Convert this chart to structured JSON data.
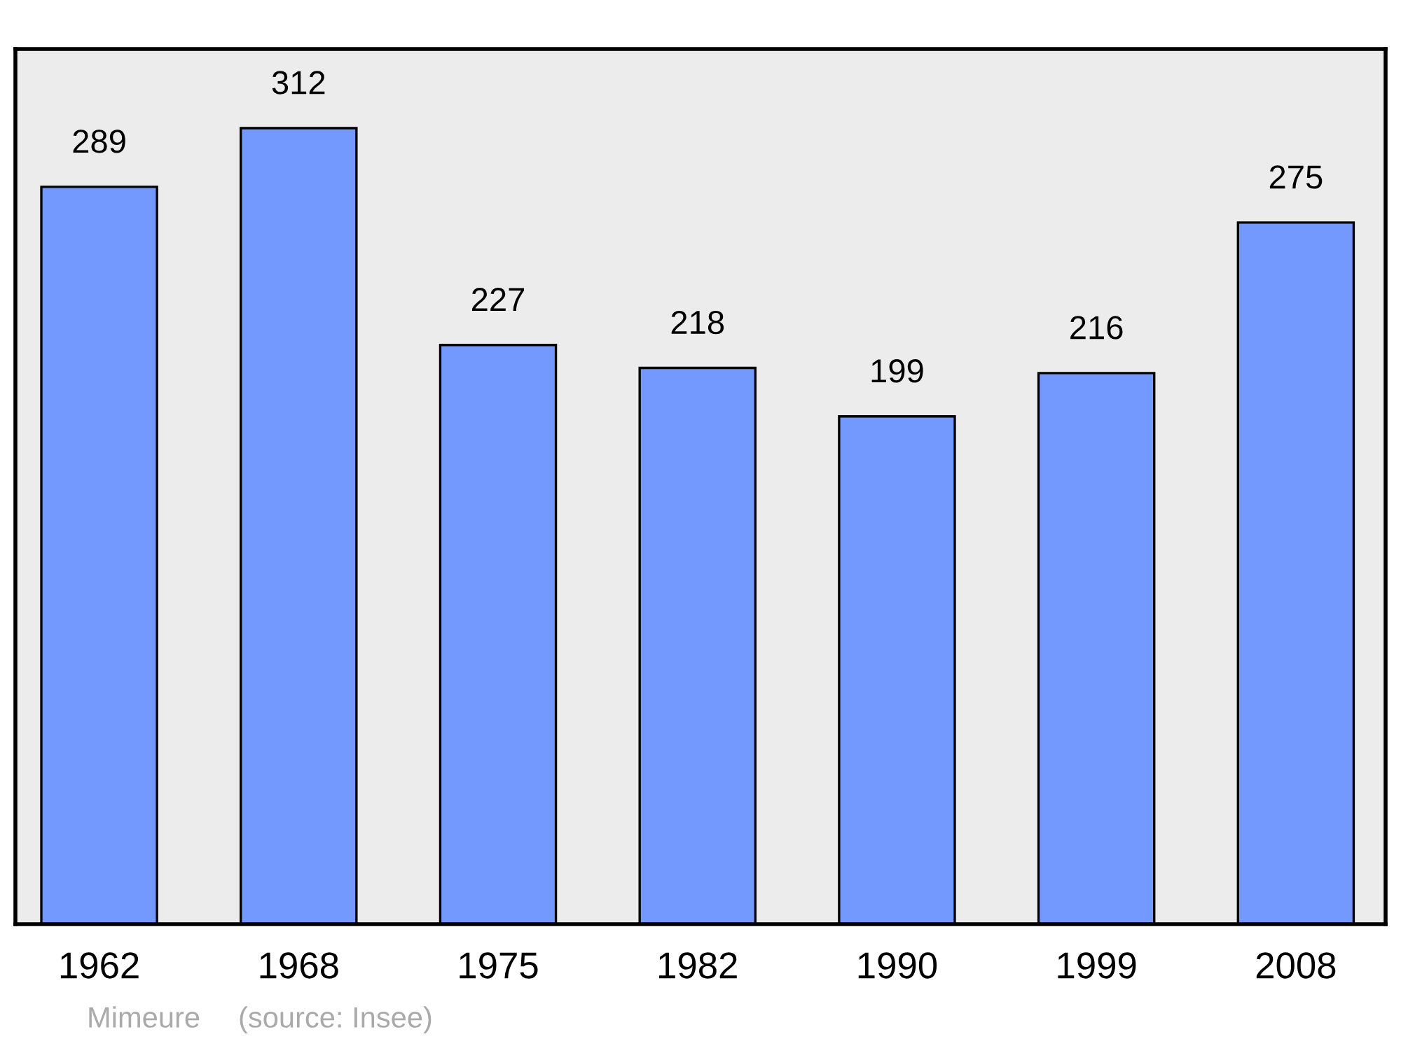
{
  "chart_data": {
    "type": "bar",
    "categories": [
      "1962",
      "1968",
      "1975",
      "1982",
      "1990",
      "1999",
      "2008"
    ],
    "values": [
      289,
      312,
      227,
      218,
      199,
      216,
      275
    ],
    "color": "#7399ff",
    "ylim": [
      0,
      343
    ],
    "data_labels": true,
    "tick_labels": "x",
    "grid": false,
    "legend": false,
    "annotations": [
      "Mimeure",
      "(source: Insee)"
    ]
  }
}
